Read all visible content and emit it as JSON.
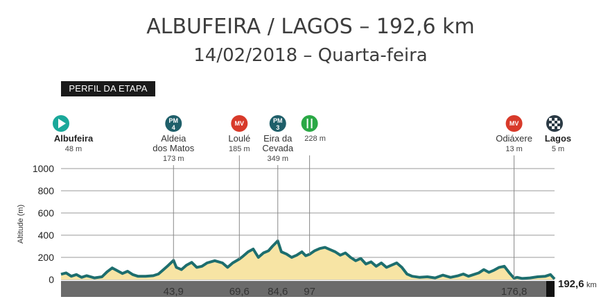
{
  "header": {
    "title": "ALBUFEIRA / LAGOS – 192,6 km",
    "subtitle": "14/02/2018 – Quarta-feira"
  },
  "tag": "PERFIL DA ETAPA",
  "colors": {
    "profile_fill": "#f7e4a4",
    "profile_line": "#1d6e6e",
    "grid": "#999999",
    "km_band": "#6b6b6b",
    "pm_icon": "#1f5f6a",
    "mv_icon": "#d83a2a",
    "feed_icon": "#2aa845",
    "start_icon": "#1aa89a"
  },
  "chart_data": {
    "type": "area",
    "title": "ALBUFEIRA / LAGOS – 192,6 km",
    "ylabel": "Altitude (m)",
    "xlabel": "",
    "xlim": [
      0,
      192.6
    ],
    "ylim": [
      0,
      1000
    ],
    "yticks": [
      0,
      200,
      400,
      600,
      800,
      1000
    ],
    "grid": true,
    "x": [
      0,
      2,
      4,
      6,
      8,
      10,
      13,
      16,
      18,
      20,
      22,
      24,
      26,
      28,
      30,
      33,
      36,
      38,
      40,
      41.5,
      43.9,
      45,
      47,
      49,
      51,
      53,
      55,
      57,
      60,
      63,
      65,
      67,
      69.6,
      71,
      73,
      75,
      77,
      79,
      81,
      82.5,
      84.6,
      86,
      88,
      90,
      92,
      94,
      95.5,
      97,
      99,
      101,
      103,
      105,
      107,
      109,
      111,
      113,
      115,
      117,
      119,
      121,
      123,
      125,
      127,
      129,
      131,
      133,
      135,
      137,
      140,
      143,
      146,
      149,
      152,
      155,
      157,
      159,
      161,
      163,
      165,
      167,
      169,
      171,
      173,
      175,
      176.8,
      178,
      180,
      183,
      186,
      189,
      191,
      192.6
    ],
    "y": [
      48,
      60,
      30,
      45,
      20,
      35,
      15,
      25,
      70,
      105,
      80,
      55,
      75,
      45,
      30,
      30,
      35,
      50,
      90,
      120,
      173,
      110,
      90,
      130,
      155,
      110,
      120,
      150,
      170,
      150,
      110,
      150,
      185,
      210,
      250,
      275,
      200,
      240,
      260,
      300,
      349,
      250,
      230,
      200,
      220,
      250,
      215,
      228,
      260,
      280,
      290,
      270,
      250,
      220,
      240,
      200,
      170,
      190,
      140,
      160,
      120,
      150,
      110,
      130,
      150,
      110,
      50,
      30,
      20,
      25,
      15,
      40,
      20,
      35,
      50,
      30,
      45,
      60,
      90,
      65,
      85,
      110,
      120,
      60,
      13,
      20,
      10,
      15,
      25,
      30,
      45,
      5
    ],
    "x_marks": [
      {
        "km": 43.9,
        "label": "43,9"
      },
      {
        "km": 69.6,
        "label": "69,6"
      },
      {
        "km": 84.6,
        "label": "84,6"
      },
      {
        "km": 97,
        "label": "97"
      },
      {
        "km": 176.8,
        "label": "176,8"
      }
    ],
    "total_distance": "192,6",
    "distance_unit": "km",
    "waypoints": [
      {
        "km": 0,
        "icon": "start-flag-icon",
        "icon_text": "",
        "name": "Albufeira",
        "name2": "",
        "alt": "48 m",
        "bold": true
      },
      {
        "km": 43.9,
        "icon": "mountain-prize-icon",
        "icon_text": "PM",
        "icon_num": "4",
        "name": "Aldeia",
        "name2": "dos Matos",
        "alt": "173 m",
        "bold": false
      },
      {
        "km": 69.6,
        "icon": "intermediate-sprint-icon",
        "icon_text": "MV",
        "name": "Loulé",
        "name2": "",
        "alt": "185 m",
        "bold": false
      },
      {
        "km": 84.6,
        "icon": "mountain-prize-icon",
        "icon_text": "PM",
        "icon_num": "3",
        "name": "Eira da",
        "name2": "Cevada",
        "alt": "349 m",
        "bold": false
      },
      {
        "km": 97,
        "icon": "feed-zone-icon",
        "icon_text": "",
        "name": "",
        "name2": "",
        "alt": "228 m",
        "bold": false
      },
      {
        "km": 176.8,
        "icon": "intermediate-sprint-icon",
        "icon_text": "MV",
        "name": "Odiáxere",
        "name2": "",
        "alt": "13 m",
        "bold": false
      },
      {
        "km": 192.6,
        "icon": "finish-flag-icon",
        "icon_text": "",
        "name": "Lagos",
        "name2": "",
        "alt": "5 m",
        "bold": true
      }
    ]
  }
}
